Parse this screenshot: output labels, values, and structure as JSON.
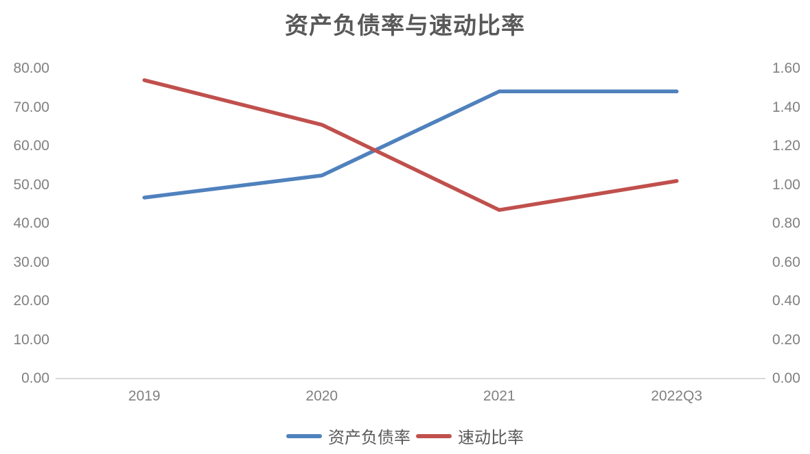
{
  "title": "资产负债率与速动比率",
  "chart_data": {
    "type": "line",
    "title": "资产负债率与速动比率",
    "categories": [
      "2019",
      "2020",
      "2021",
      "2022Q3"
    ],
    "series": [
      {
        "name": "资产负债率",
        "axis": "left",
        "color": "#4F81BD",
        "values": [
          46.7,
          52.4,
          74.1,
          74.1
        ]
      },
      {
        "name": "速动比率",
        "axis": "right",
        "color": "#C0504D",
        "values": [
          1.54,
          1.31,
          0.87,
          1.02
        ]
      }
    ],
    "left_axis": {
      "min": 0,
      "max": 80,
      "step": 10,
      "tick_labels": [
        "80.00",
        "70.00",
        "60.00",
        "50.00",
        "40.00",
        "30.00",
        "20.00",
        "10.00",
        "0.00"
      ]
    },
    "right_axis": {
      "min": 0,
      "max": 1.6,
      "step": 0.2,
      "tick_labels": [
        "1.60",
        "1.40",
        "1.20",
        "1.00",
        "0.80",
        "0.60",
        "0.40",
        "0.20",
        "0.00"
      ]
    },
    "legend_position": "bottom",
    "grid": false,
    "colors": {
      "title_text": "#595959",
      "tick_text": "#808080",
      "axis_line": "#D9D9D9",
      "legend_text": "#595959"
    }
  }
}
